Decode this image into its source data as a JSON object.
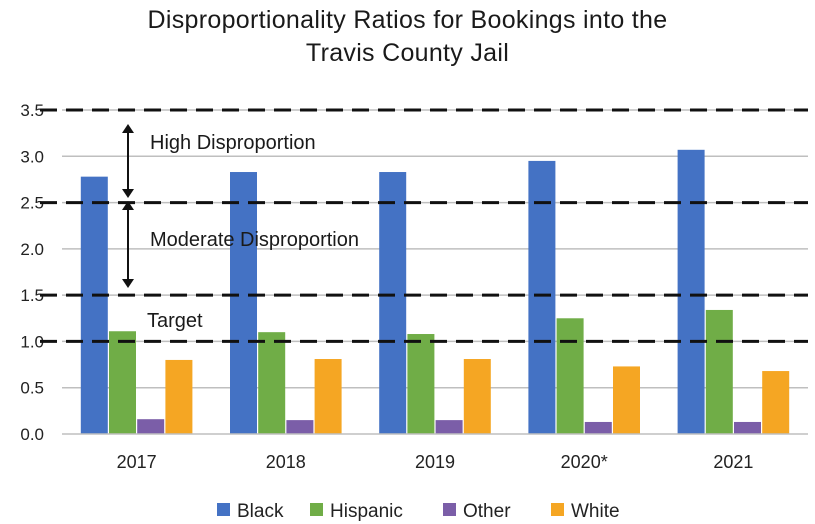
{
  "chart_data": {
    "type": "bar",
    "title_line1": "Disproportionality Ratios for Bookings into the",
    "title_line2": "Travis County Jail",
    "categories": [
      "2017",
      "2018",
      "2019",
      "2020*",
      "2021"
    ],
    "series": [
      {
        "name": "Black",
        "color": "#4472C4",
        "values": [
          2.78,
          2.83,
          2.83,
          2.95,
          3.07
        ]
      },
      {
        "name": "Hispanic",
        "color": "#70AD47",
        "values": [
          1.11,
          1.1,
          1.08,
          1.25,
          1.34
        ]
      },
      {
        "name": "Other",
        "color": "#7B5EA8",
        "values": [
          0.16,
          0.15,
          0.15,
          0.13,
          0.13
        ]
      },
      {
        "name": "White",
        "color": "#F5A623",
        "values": [
          0.8,
          0.81,
          0.81,
          0.73,
          0.68
        ]
      }
    ],
    "ylim": [
      0,
      3.5
    ],
    "yticks": [
      "0.0",
      "0.5",
      "1.0",
      "1.5",
      "2.0",
      "2.5",
      "3.0",
      "3.5"
    ],
    "threshold_lines": [
      1.0,
      1.5,
      2.5,
      3.5
    ],
    "annotations": {
      "high": "High Disproportion",
      "moderate": "Moderate Disproportion",
      "target": "Target"
    },
    "grid": true,
    "legend_position": "bottom"
  }
}
